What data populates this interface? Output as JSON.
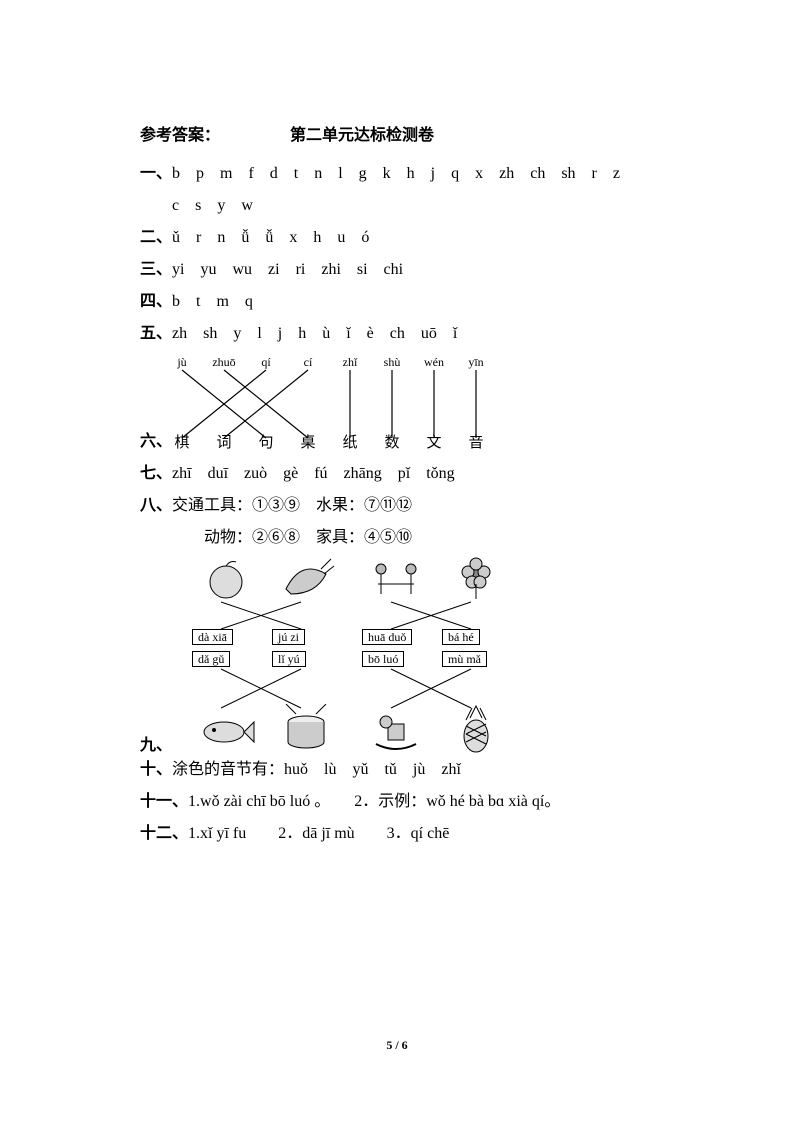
{
  "header_label": "参考答案：",
  "title": "第二单元达标检测卷",
  "q1": {
    "num": "一、",
    "text": "b　p　m　f　d　t　n　l　g　k　h　j　q　x　zh　ch　sh　r　z",
    "cont": "c　s　y　w"
  },
  "q2": {
    "num": "二、",
    "text": "ǔ　r　n　ǚ　ǚ　x　h　u　ó"
  },
  "q3": {
    "num": "三、",
    "text": "yi　yu　wu　zi　ri　zhi　si　chi"
  },
  "q4": {
    "num": "四、",
    "text": "b　t　m　q"
  },
  "q5": {
    "num": "五、",
    "text": "zh　sh　y　l　j　h　ù　ǐ　è　ch　uō　ǐ"
  },
  "q6": {
    "num": "六、",
    "top": [
      "jù",
      "zhuō",
      "qí",
      "cí",
      "zhǐ",
      "shù",
      "wén",
      "yīn"
    ],
    "bot": [
      "棋",
      "词",
      "句",
      "桌",
      "纸",
      "数",
      "文",
      "音"
    ],
    "pairs": [
      [
        0,
        2
      ],
      [
        1,
        3
      ],
      [
        2,
        0
      ],
      [
        3,
        1
      ],
      [
        4,
        4
      ],
      [
        5,
        5
      ],
      [
        6,
        6
      ],
      [
        7,
        7
      ]
    ]
  },
  "q7": {
    "num": "七、",
    "text": "zhī　duī　zuò　gè　fú　zhāng　pǐ　tǒng"
  },
  "q8": {
    "num": "八、",
    "line1": "交通工具：①③⑨　水果：⑦⑪⑫",
    "line2": "动物：②⑥⑧　家具：④⑤⑩"
  },
  "q9": {
    "num": "九、",
    "mid": [
      "dà xiā",
      "jú zi",
      "huā duǒ",
      "bá hé"
    ],
    "mid2": [
      "dǎ gǔ",
      "lǐ yú",
      "bō luó",
      "mù mǎ"
    ]
  },
  "q10": {
    "num": "十、",
    "text": "涂色的音节有：huǒ　lù　yǔ　tǔ　jù　zhǐ"
  },
  "q11": {
    "num": "十一、",
    "text": "1.wǒ zài chī bō luó 。　　2．示例：wǒ hé bà bɑ xià qí。"
  },
  "q12": {
    "num": "十二、",
    "text": "1.xǐ yī fu　　2．dā jī mù　　3．qí chē"
  },
  "footer": "5 / 6",
  "colors": {
    "text": "#000000",
    "bg": "#ffffff",
    "line": "#000000"
  }
}
